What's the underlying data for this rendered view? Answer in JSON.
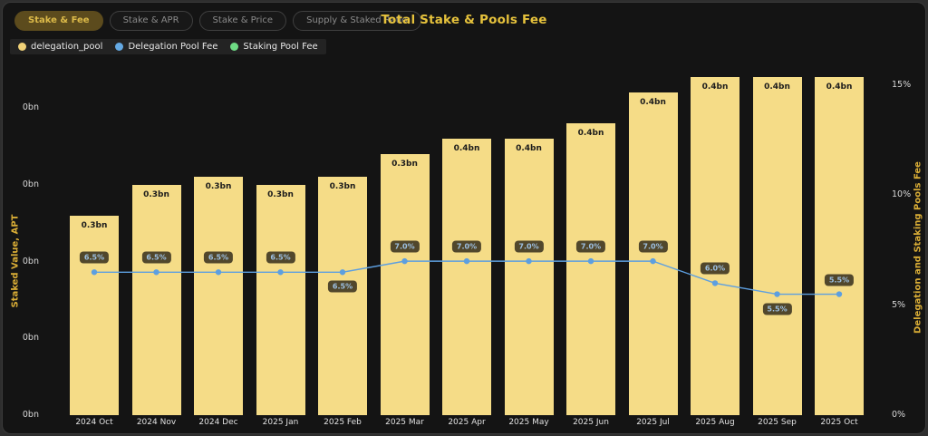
{
  "header": {
    "title": "Total Stake & Pools Fee",
    "buttons": [
      {
        "label": "Stake & Fee",
        "active": true
      },
      {
        "label": "Stake & APR",
        "active": false
      },
      {
        "label": "Stake & Price",
        "active": false
      },
      {
        "label": "Supply & Staked Ratio",
        "active": false
      }
    ]
  },
  "legend": [
    {
      "label": "delegation_pool",
      "color": "#f0d178"
    },
    {
      "label": "Delegation Pool Fee",
      "color": "#64a9e3"
    },
    {
      "label": "Staking Pool Fee",
      "color": "#6fdc85"
    }
  ],
  "chart_data": {
    "type": "bar",
    "title": "Total Stake & Pools Fee",
    "categories": [
      "2024 Oct",
      "2024 Nov",
      "2024 Dec",
      "2025 Jan",
      "2025 Feb",
      "2025 Mar",
      "2025 Apr",
      "2025 May",
      "2025 Jun",
      "2025 Jul",
      "2025 Aug",
      "2025 Sep",
      "2025 Oct"
    ],
    "series": [
      {
        "name": "delegation_pool",
        "type": "bar",
        "axis": "left",
        "color": "#f5dc87",
        "values_bn": [
          0.26,
          0.3,
          0.31,
          0.3,
          0.31,
          0.34,
          0.36,
          0.36,
          0.38,
          0.42,
          0.44,
          0.44,
          0.44
        ],
        "labels": [
          "0.3bn",
          "0.3bn",
          "0.3bn",
          "0.3bn",
          "0.3bn",
          "0.3bn",
          "0.4bn",
          "0.4bn",
          "0.4bn",
          "0.4bn",
          "0.4bn",
          "0.4bn",
          "0.4bn"
        ]
      },
      {
        "name": "Delegation Pool Fee",
        "type": "line",
        "axis": "right",
        "color": "#5d9fe0",
        "values_pct": [
          6.5,
          6.5,
          6.5,
          6.5,
          6.5,
          7.0,
          7.0,
          7.0,
          7.0,
          7.0,
          6.0,
          5.5,
          5.5
        ],
        "labels": [
          "6.5%",
          "6.5%",
          "6.5%",
          "6.5%",
          "6.5%",
          "7.0%",
          "7.0%",
          "7.0%",
          "7.0%",
          "7.0%",
          "6.0%",
          "5.5%",
          "5.5%"
        ],
        "label_positions": [
          "above",
          "above",
          "above",
          "above",
          "below",
          "above",
          "above",
          "above",
          "above",
          "above",
          "above",
          "below",
          "above"
        ]
      },
      {
        "name": "Staking Pool Fee",
        "type": "line",
        "axis": "right",
        "color": "#6fdc85",
        "values_pct": []
      }
    ],
    "left_axis": {
      "title": "Staked Value, APT",
      "unit": "bn",
      "range": [
        0,
        0.47
      ],
      "ticks": [
        {
          "value": 0.0,
          "label": "0bn"
        },
        {
          "value": 0.1,
          "label": "0bn"
        },
        {
          "value": 0.2,
          "label": "0bn"
        },
        {
          "value": 0.3,
          "label": "0bn"
        },
        {
          "value": 0.4,
          "label": "0bn"
        }
      ]
    },
    "right_axis": {
      "title": "Delegation and Staking Pools Fee",
      "unit": "%",
      "range": [
        0,
        16.3
      ],
      "ticks": [
        {
          "value": 0,
          "label": "0%"
        },
        {
          "value": 5,
          "label": "5%"
        },
        {
          "value": 10,
          "label": "10%"
        },
        {
          "value": 15,
          "label": "15%"
        }
      ]
    },
    "grid": false,
    "legend_position": "top-left"
  },
  "colors": {
    "accent_gold": "#e6c23c",
    "bar_fill": "#f5dc87",
    "line_blue": "#5d9fe0",
    "badge_bg": "#423a24",
    "badge_text": "#9dc0e2",
    "active_button_bg": "#5c4b1d",
    "active_button_text": "#dcba49",
    "background": "#141414"
  }
}
